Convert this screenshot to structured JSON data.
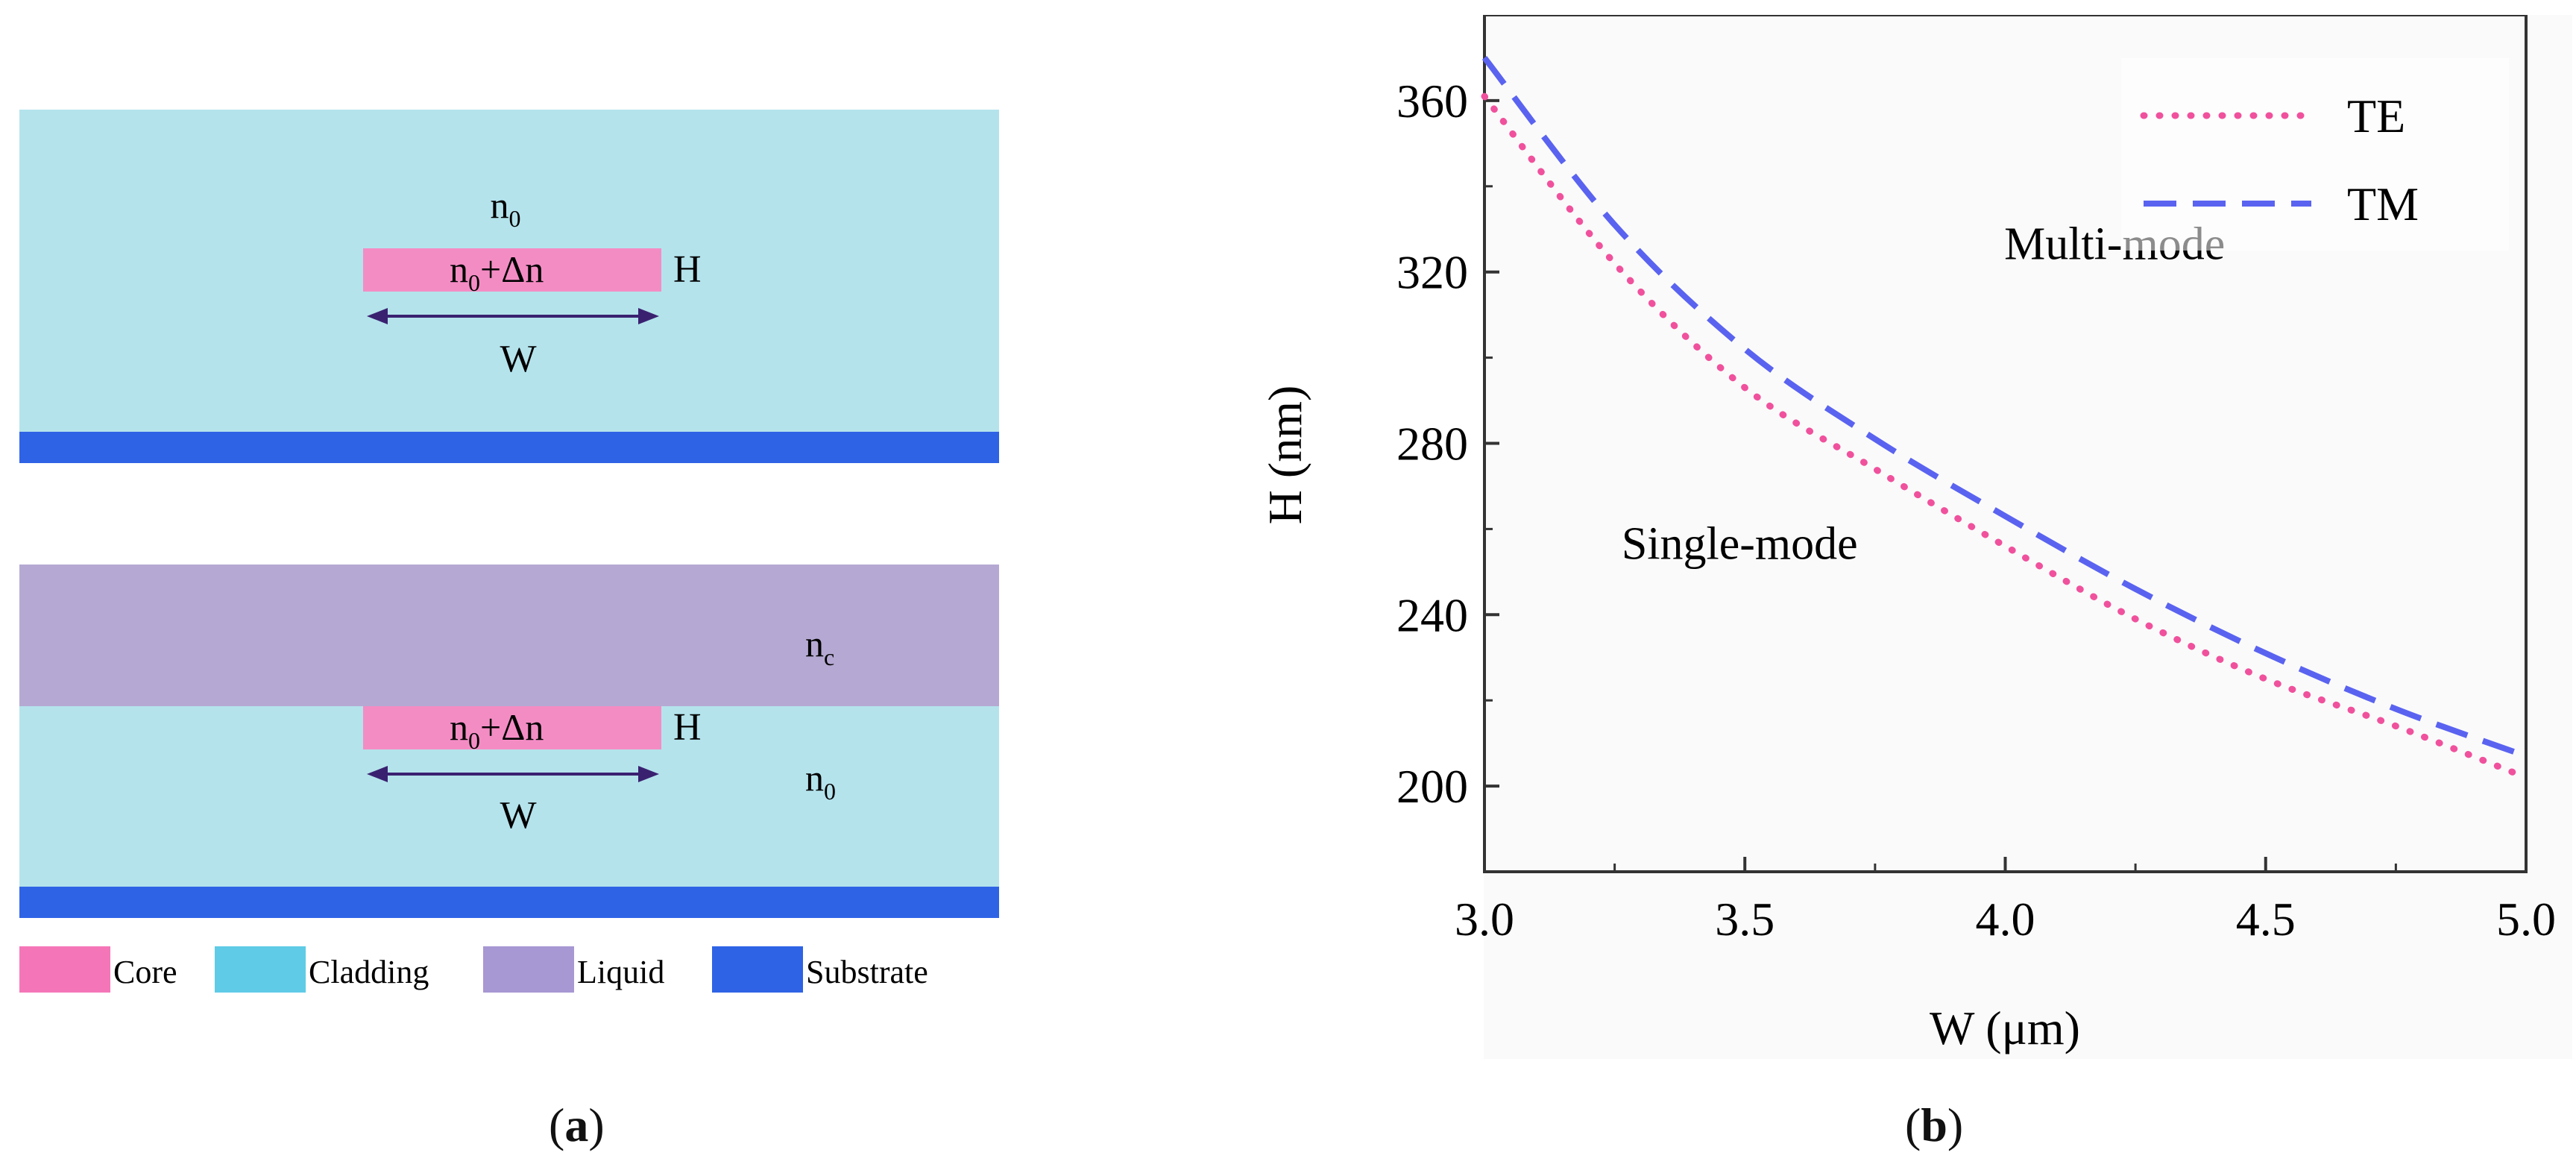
{
  "schematic": {
    "top": {
      "n0_label": "n",
      "n0_sub": "0",
      "core_label": "n",
      "core_sub": "0",
      "core_rest": "+Δn",
      "h_label": "H",
      "w_label": "W"
    },
    "bottom": {
      "nc_label": "n",
      "nc_sub": "c",
      "n0_label": "n",
      "n0_sub": "0",
      "core_label": "n",
      "core_sub": "0",
      "core_rest": "+Δn",
      "h_label": "H",
      "w_label": "W"
    },
    "legend": [
      {
        "label": "Core",
        "color": "#f576b8"
      },
      {
        "label": "Cladding",
        "color": "#5fcbe6"
      },
      {
        "label": "Liquid",
        "color": "#a797d2"
      },
      {
        "label": "Substrate",
        "color": "#2f63e6"
      }
    ],
    "colors": {
      "cladding": "#b4e3ec",
      "liquid": "#b5a9d3",
      "core": "#f48cc4",
      "substrate": "#2f63e6",
      "arrow": "#3a2170"
    }
  },
  "captions": {
    "a_open": "(",
    "a_letter": "a",
    "a_close": ")",
    "b_open": "(",
    "b_letter": "b",
    "b_close": ")"
  },
  "chart_data": {
    "type": "line",
    "xlabel": "W (μm)",
    "ylabel": "H (nm)",
    "xlim": [
      3.0,
      5.0
    ],
    "ylim": [
      180,
      380
    ],
    "xticks": [
      3.0,
      3.5,
      4.0,
      4.5,
      5.0
    ],
    "xtick_labels": [
      "3.0",
      "3.5",
      "4.0",
      "4.5",
      "5.0"
    ],
    "yticks": [
      200,
      240,
      280,
      320,
      360
    ],
    "ytick_labels": [
      "200",
      "240",
      "280",
      "320",
      "360"
    ],
    "legend_position": "top-right",
    "annotations": [
      {
        "text": "Multi-mode",
        "x": 4.21,
        "y": 323
      },
      {
        "text": "Single-mode",
        "x": 3.49,
        "y": 253
      }
    ],
    "series": [
      {
        "name": "TE",
        "style": "dotted",
        "color": "#f0519d",
        "x": [
          3.0,
          3.25,
          3.5,
          3.75,
          4.0,
          4.25,
          4.5,
          4.75,
          5.0
        ],
        "values": [
          361,
          322,
          293,
          274,
          256,
          239,
          225,
          214,
          202
        ]
      },
      {
        "name": "TM",
        "style": "dashed",
        "color": "#5a63f0",
        "x": [
          3.0,
          3.25,
          3.5,
          3.75,
          4.0,
          4.25,
          4.5,
          4.75,
          5.0
        ],
        "values": [
          370,
          331,
          302,
          281,
          263,
          246,
          231,
          218,
          207
        ]
      }
    ]
  }
}
